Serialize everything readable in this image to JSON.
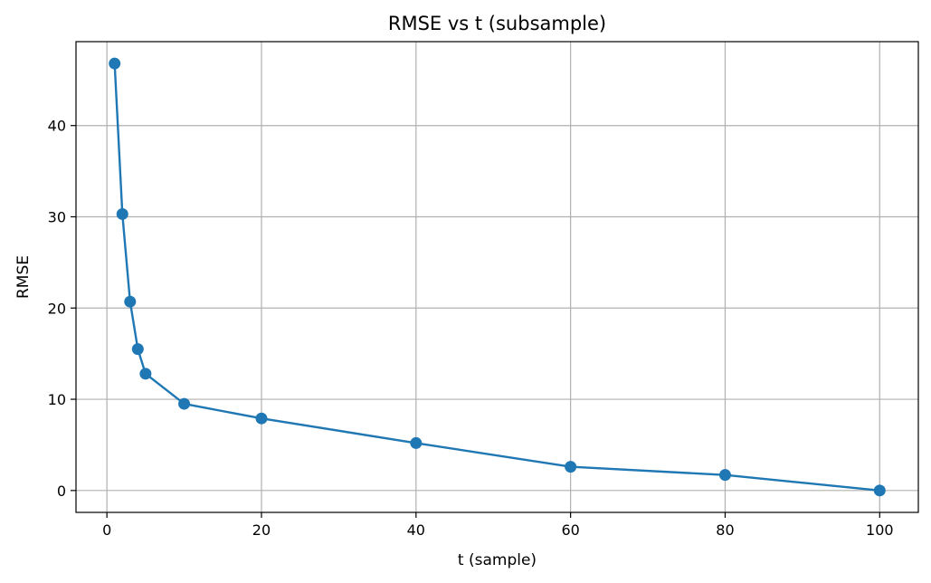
{
  "chart_data": {
    "type": "line",
    "title": "RMSE vs t (subsample)",
    "xlabel": "t (sample)",
    "ylabel": "RMSE",
    "xlim": [
      -4,
      105
    ],
    "ylim": [
      -2.4,
      49.2
    ],
    "xticks": [
      0,
      20,
      40,
      60,
      80,
      100
    ],
    "yticks": [
      0,
      10,
      20,
      30,
      40
    ],
    "grid": true,
    "color": "#1f77b4",
    "series": [
      {
        "x": [
          1,
          2,
          3,
          4,
          5,
          10,
          20,
          40,
          60,
          80,
          100
        ],
        "y": [
          46.8,
          30.3,
          20.7,
          15.5,
          12.8,
          9.5,
          7.9,
          5.2,
          2.6,
          1.7,
          0.0
        ]
      }
    ]
  }
}
